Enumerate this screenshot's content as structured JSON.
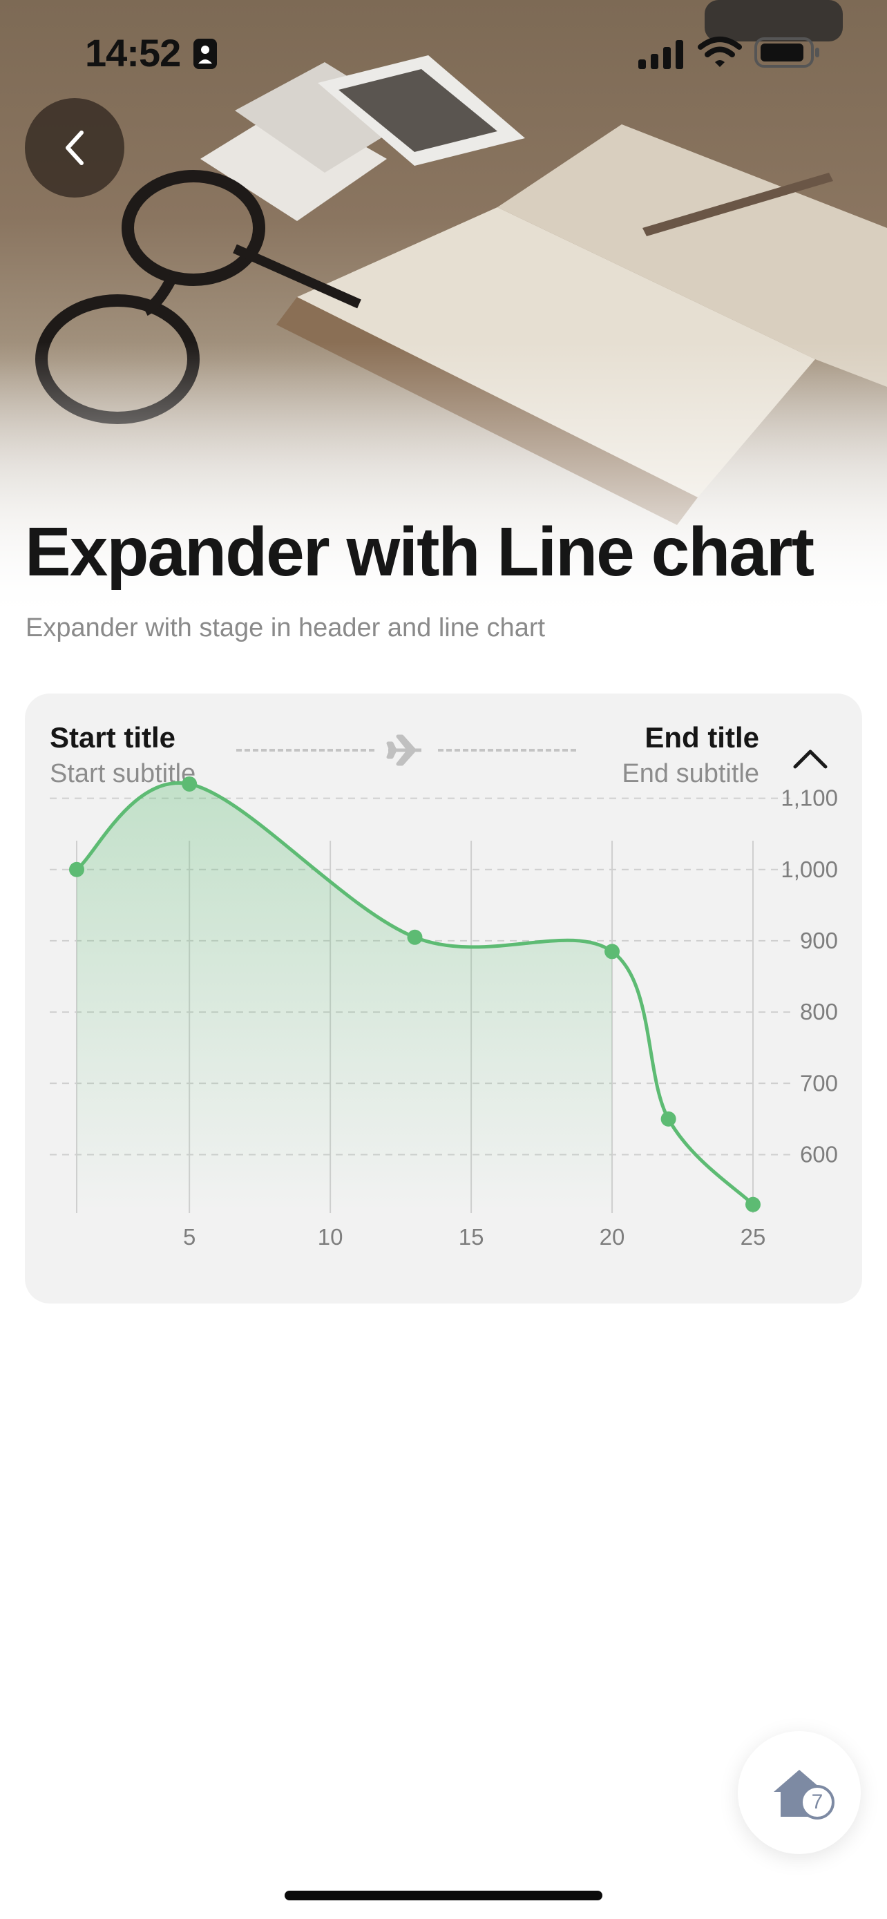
{
  "status_bar": {
    "time": "14:52"
  },
  "header": {
    "title": "Expander with Line chart",
    "subtitle": "Expander with stage in header and line chart"
  },
  "expander": {
    "start_title": "Start title",
    "start_subtitle": "Start subtitle",
    "end_title": "End title",
    "end_subtitle": "End subtitle",
    "expanded": true
  },
  "chart_data": {
    "type": "area",
    "x": [
      1,
      5,
      13,
      20,
      22,
      25
    ],
    "y": [
      1000,
      1120,
      905,
      885,
      650,
      530
    ],
    "xlim": [
      0,
      25
    ],
    "ylim": [
      520,
      1150
    ],
    "x_ticks": [
      5,
      10,
      15,
      20,
      25
    ],
    "y_ticks": [
      1100,
      1000,
      900,
      800,
      700,
      600
    ],
    "x_tick_labels": [
      "5",
      "10",
      "15",
      "20",
      "25"
    ],
    "y_tick_labels": [
      "1,100",
      "1,000",
      "900",
      "800",
      "700",
      "600"
    ],
    "color": "#5dbb73",
    "grid": true,
    "title": "",
    "xlabel": "",
    "ylabel": ""
  },
  "fab": {
    "badge": "7",
    "icon": "home-icon"
  }
}
